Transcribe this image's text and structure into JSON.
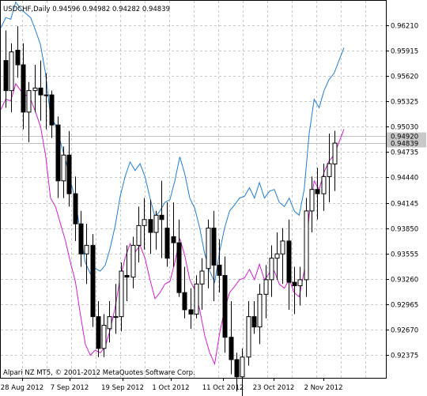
{
  "window": {
    "header": "USDCHF,Daily  0.94596 0.94982 0.94282 0.94839",
    "copyright": "Alpari NZ MT5, © 2001-2012 MetaQuotes Software Corp."
  },
  "chart_data": {
    "type": "candlestick",
    "symbol": "USDCHF",
    "timeframe": "Daily",
    "last_ohlc": {
      "open": 0.94596,
      "high": 0.94982,
      "low": 0.94282,
      "close": 0.94839
    },
    "price_ticks": [
      "0.96210",
      "0.95915",
      "0.95620",
      "0.95325",
      "0.95030",
      "0.94735",
      "0.94440",
      "0.94145",
      "0.93850",
      "0.93555",
      "0.93260",
      "0.92965",
      "0.92670",
      "0.92375"
    ],
    "price_badges": [
      "0.94920",
      "0.94839"
    ],
    "date_ticks": [
      "28 Aug 2012",
      "7 Sep 2012",
      "19 Sep 2012",
      "1 Oct 2012",
      "11 Oct 2012",
      "23 Oct 2012",
      "2 Nov 2012"
    ],
    "grid": true,
    "colors": {
      "upper_band": "#1e7fd4",
      "lower_band": "#d020d0",
      "candle": "#000000",
      "grid": "#c8c8c8"
    },
    "candles": [
      [
        0.958,
        0.9615,
        0.9525,
        0.9545
      ],
      [
        0.9545,
        0.96,
        0.952,
        0.959
      ],
      [
        0.9592,
        0.962,
        0.956,
        0.9575
      ],
      [
        0.9575,
        0.96,
        0.95,
        0.952
      ],
      [
        0.952,
        0.9555,
        0.9485,
        0.9545
      ],
      [
        0.9545,
        0.9575,
        0.952,
        0.9548
      ],
      [
        0.9548,
        0.958,
        0.951,
        0.954
      ],
      [
        0.954,
        0.9565,
        0.95,
        0.954
      ],
      [
        0.954,
        0.9545,
        0.949,
        0.9505
      ],
      [
        0.9505,
        0.9515,
        0.942,
        0.944
      ],
      [
        0.944,
        0.948,
        0.942,
        0.947
      ],
      [
        0.947,
        0.9498,
        0.941,
        0.9425
      ],
      [
        0.9425,
        0.9445,
        0.937,
        0.939
      ],
      [
        0.939,
        0.9405,
        0.934,
        0.9355
      ],
      [
        0.9355,
        0.939,
        0.932,
        0.9365
      ],
      [
        0.9365,
        0.9378,
        0.927,
        0.9282
      ],
      [
        0.9282,
        0.93,
        0.9235,
        0.9245
      ],
      [
        0.9245,
        0.9285,
        0.9235,
        0.9272
      ],
      [
        0.9268,
        0.93,
        0.9252,
        0.9282
      ],
      [
        0.9282,
        0.932,
        0.9262,
        0.9282
      ],
      [
        0.9282,
        0.9345,
        0.9265,
        0.9335
      ],
      [
        0.933,
        0.9365,
        0.93,
        0.9328
      ],
      [
        0.9328,
        0.9375,
        0.9315,
        0.9365
      ],
      [
        0.9365,
        0.941,
        0.9345,
        0.9388
      ],
      [
        0.9388,
        0.942,
        0.936,
        0.9395
      ],
      [
        0.9395,
        0.9418,
        0.9355,
        0.938
      ],
      [
        0.938,
        0.9405,
        0.936,
        0.94
      ],
      [
        0.94,
        0.944,
        0.935,
        0.9395
      ],
      [
        0.9385,
        0.9415,
        0.934,
        0.935
      ],
      [
        0.9375,
        0.9415,
        0.934,
        0.9368
      ],
      [
        0.9368,
        0.9395,
        0.9305,
        0.931
      ],
      [
        0.931,
        0.934,
        0.928,
        0.929
      ],
      [
        0.929,
        0.9315,
        0.9268,
        0.9285
      ],
      [
        0.9285,
        0.933,
        0.928,
        0.932
      ],
      [
        0.932,
        0.935,
        0.929,
        0.9335
      ],
      [
        0.9338,
        0.9395,
        0.9315,
        0.9385
      ],
      [
        0.9385,
        0.9405,
        0.93,
        0.9342
      ],
      [
        0.9342,
        0.9372,
        0.931,
        0.933
      ],
      [
        0.933,
        0.9352,
        0.924,
        0.9258
      ],
      [
        0.9258,
        0.93,
        0.9215,
        0.9232
      ],
      [
        0.9232,
        0.924,
        0.9195,
        0.9212
      ],
      [
        0.9212,
        0.9245,
        0.9188,
        0.9235
      ],
      [
        0.9235,
        0.93,
        0.9225,
        0.9282
      ],
      [
        0.9282,
        0.93,
        0.9262,
        0.927
      ],
      [
        0.927,
        0.932,
        0.925,
        0.9308
      ],
      [
        0.9308,
        0.9342,
        0.928,
        0.9325
      ],
      [
        0.9325,
        0.9365,
        0.9305,
        0.935
      ],
      [
        0.935,
        0.938,
        0.9325,
        0.9355
      ],
      [
        0.9355,
        0.9385,
        0.932,
        0.937
      ],
      [
        0.937,
        0.9395,
        0.929,
        0.9322
      ],
      [
        0.9322,
        0.934,
        0.9285,
        0.9318
      ],
      [
        0.9318,
        0.934,
        0.9295,
        0.9325
      ],
      [
        0.9325,
        0.942,
        0.9305,
        0.9405
      ],
      [
        0.9405,
        0.9445,
        0.938,
        0.943
      ],
      [
        0.943,
        0.9455,
        0.9395,
        0.9425
      ],
      [
        0.9425,
        0.946,
        0.9405,
        0.9445
      ],
      [
        0.9445,
        0.9495,
        0.9415,
        0.946
      ],
      [
        0.94596,
        0.94982,
        0.94282,
        0.94839
      ]
    ],
    "upper_band": [
      0.9618,
      0.963,
      0.9628,
      0.9648,
      0.964,
      0.9635,
      0.963,
      0.9615,
      0.9598,
      0.9565,
      0.9515,
      0.9505,
      0.9485,
      0.9465,
      0.944,
      0.9418,
      0.938,
      0.9345,
      0.9332,
      0.9338,
      0.9335,
      0.9342,
      0.9362,
      0.9388,
      0.9422,
      0.9445,
      0.9462,
      0.9452,
      0.946,
      0.9445,
      0.942,
      0.9398,
      0.9405,
      0.9415,
      0.9418,
      0.944,
      0.9468,
      0.9448,
      0.942,
      0.9408,
      0.9385,
      0.9355,
      0.9335,
      0.9322,
      0.9358,
      0.9385,
      0.9405,
      0.9412,
      0.942,
      0.9422,
      0.9432,
      0.942,
      0.9438,
      0.942,
      0.9428,
      0.943,
      0.9415,
      0.941,
      0.942,
      0.9405,
      0.94,
      0.943,
      0.9495,
      0.9535,
      0.9525,
      0.9545,
      0.9558,
      0.9565,
      0.958,
      0.9595
    ]
  }
}
